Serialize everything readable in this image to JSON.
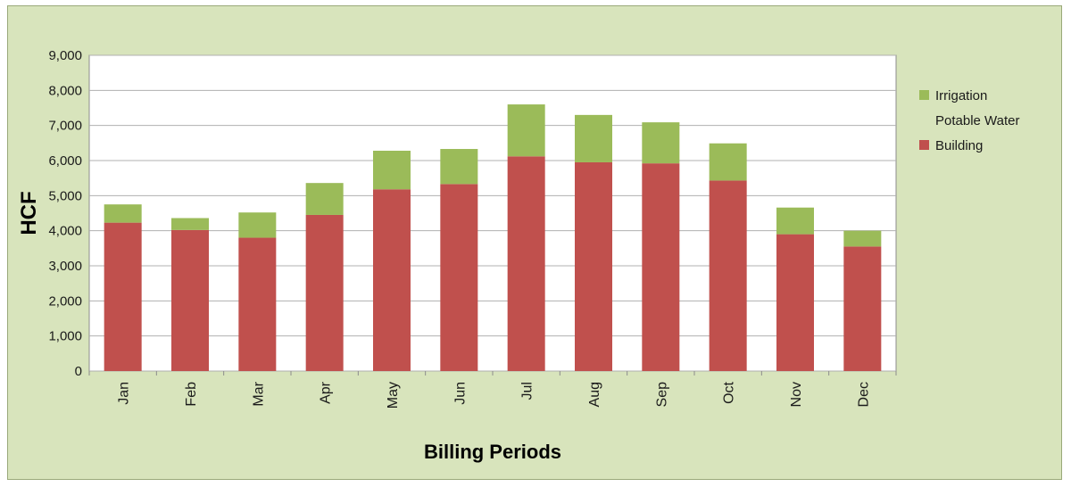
{
  "chart_data": {
    "type": "bar",
    "stacked": true,
    "title": "",
    "xlabel": "Billing Periods",
    "ylabel": "HCF",
    "ylim": [
      0,
      9000
    ],
    "yticks": [
      0,
      1000,
      2000,
      3000,
      4000,
      5000,
      6000,
      7000,
      8000,
      9000
    ],
    "ytick_labels": [
      "0",
      "1,000",
      "2,000",
      "3,000",
      "4,000",
      "5,000",
      "6,000",
      "7,000",
      "8,000",
      "9,000"
    ],
    "grid": true,
    "legend_position": "right",
    "categories": [
      "Jan",
      "Feb",
      "Mar",
      "Apr",
      "May",
      "Jun",
      "Jul",
      "Aug",
      "Sep",
      "Oct",
      "Nov",
      "Dec"
    ],
    "series": [
      {
        "name": "Building",
        "color": "#c0504d",
        "values": [
          4230,
          4020,
          3800,
          4450,
          5180,
          5330,
          6120,
          5950,
          5920,
          5430,
          3900,
          3550
        ]
      },
      {
        "name": "Potable Water",
        "color": "#4f81bd",
        "values": [
          0,
          0,
          0,
          0,
          0,
          0,
          0,
          0,
          0,
          0,
          0,
          0
        ]
      },
      {
        "name": "Irrigation",
        "color": "#9bbb59",
        "values": [
          520,
          340,
          720,
          910,
          1100,
          1000,
          1480,
          1350,
          1170,
          1060,
          760,
          450
        ]
      }
    ],
    "legend": [
      {
        "label": "Irrigation",
        "color": "#9bbb59",
        "swatch": true
      },
      {
        "label": "Potable Water",
        "color": "#4f81bd",
        "swatch": false
      },
      {
        "label": "Building",
        "color": "#c0504d",
        "swatch": true
      }
    ]
  }
}
